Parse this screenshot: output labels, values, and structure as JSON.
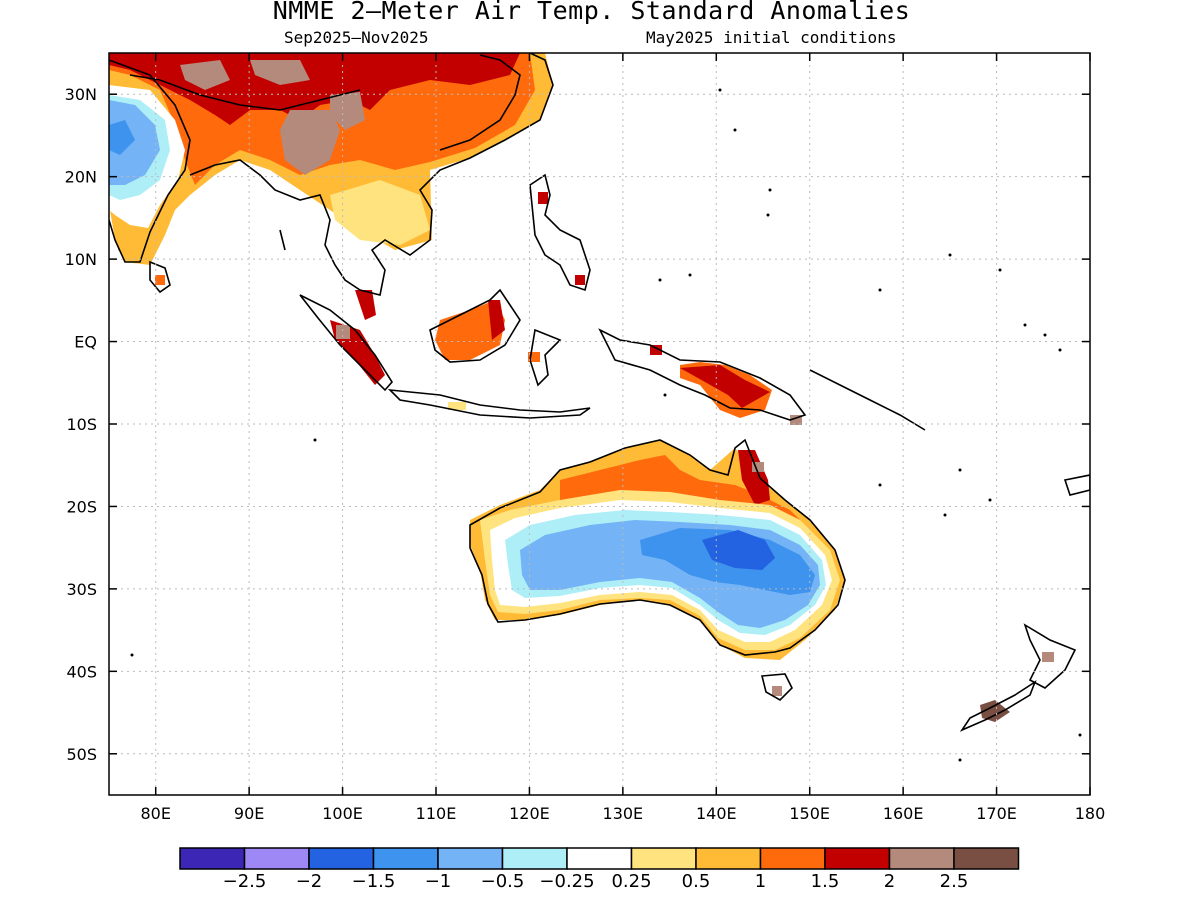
{
  "title": "NMME 2–Meter Air Temp. Standard Anomalies",
  "subtitle_left": "Sep2025–Nov2025",
  "subtitle_right": "May2025 initial conditions",
  "lat_labels": [
    "30N",
    "20N",
    "10N",
    "EQ",
    "10S",
    "20S",
    "30S",
    "40S",
    "50S"
  ],
  "lon_labels": [
    "80E",
    "90E",
    "100E",
    "110E",
    "120E",
    "130E",
    "140E",
    "150E",
    "160E",
    "170E",
    "180"
  ],
  "colorbar": {
    "colors": [
      "#3b26b5",
      "#9d88f5",
      "#2362e0",
      "#3d93ee",
      "#74b3f6",
      "#aeeef7",
      "#ffffff",
      "#ffe37e",
      "#ffbb35",
      "#ff6a0d",
      "#c30000",
      "#b48a7d",
      "#7a4f43"
    ],
    "labels": [
      "−2.5",
      "−2",
      "−1.5",
      "−1",
      "−0.5",
      "−0.25",
      "0.25",
      "0.5",
      "1",
      "1.5",
      "2",
      "2.5"
    ]
  },
  "map_extent": {
    "lon": [
      75,
      180
    ],
    "lat": [
      -55,
      35
    ]
  }
}
